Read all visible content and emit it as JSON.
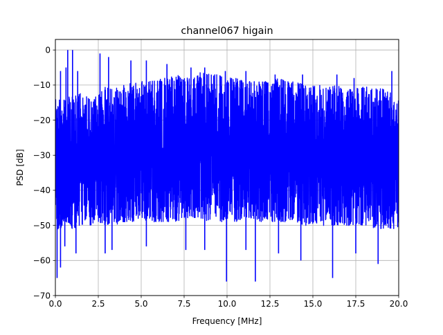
{
  "chart_data": {
    "type": "line",
    "title": "channel067 higain",
    "xlabel": "Frequency [MHz]",
    "ylabel": "PSD [dB]",
    "xlim": [
      0,
      20
    ],
    "ylim": [
      -70,
      3
    ],
    "xticks": [
      0,
      2.5,
      5,
      7.5,
      10,
      12.5,
      15,
      17.5,
      20
    ],
    "xtick_labels": [
      "0.0",
      "2.5",
      "5.0",
      "7.5",
      "10.0",
      "12.5",
      "15.0",
      "17.5",
      "20.0"
    ],
    "yticks": [
      0,
      -10,
      -20,
      -30,
      -40,
      -50,
      -60,
      -70
    ],
    "ytick_labels": [
      "0",
      "−10",
      "−20",
      "−30",
      "−40",
      "−50",
      "−60",
      "−70"
    ],
    "grid": true,
    "line_color": "#0000ff",
    "series": [
      {
        "upper_envelope": {
          "x": [
            0,
            0.5,
            1.0,
            1.5,
            2.0,
            2.5,
            3.0,
            3.5,
            4.0,
            4.5,
            5.0,
            5.5,
            6.0,
            6.5,
            7.0,
            7.5,
            8.0,
            8.5,
            9.0,
            9.5,
            10.0,
            10.5,
            11.0,
            11.5,
            12.0,
            12.5,
            13.0,
            13.5,
            14.0,
            14.5,
            15.0,
            15.5,
            16.0,
            16.5,
            17.0,
            17.5,
            18.0,
            18.5,
            19.0,
            19.5,
            20.0
          ],
          "y": [
            -13,
            -14,
            -13,
            -12,
            -14,
            -13,
            -10,
            -11,
            -10,
            -9,
            -9,
            -9,
            -8,
            -8,
            -7,
            -8,
            -8,
            -6,
            -7,
            -7,
            -8,
            -8,
            -9,
            -9,
            -9,
            -9,
            -8,
            -9,
            -9,
            -10,
            -10,
            -9,
            -10,
            -10,
            -11,
            -11,
            -10,
            -11,
            -11,
            -12,
            -12
          ]
        },
        "lower_envelope": {
          "x": [
            0,
            0.5,
            1.0,
            1.5,
            2.0,
            2.5,
            3.0,
            3.5,
            4.0,
            4.5,
            5.0,
            5.5,
            6.0,
            6.5,
            7.0,
            7.5,
            8.0,
            8.5,
            9.0,
            9.5,
            10.0,
            10.5,
            11.0,
            11.5,
            12.0,
            12.5,
            13.0,
            13.5,
            14.0,
            14.5,
            15.0,
            15.5,
            16.0,
            16.5,
            17.0,
            17.5,
            18.0,
            18.5,
            19.0,
            19.5,
            20.0
          ],
          "y": [
            -52,
            -50,
            -51,
            -50,
            -50,
            -49,
            -50,
            -50,
            -49,
            -49,
            -48,
            -49,
            -49,
            -49,
            -49,
            -48,
            -48,
            -48,
            -49,
            -49,
            -49,
            -49,
            -48,
            -48,
            -49,
            -49,
            -49,
            -49,
            -49,
            -50,
            -50,
            -50,
            -50,
            -50,
            -50,
            -50,
            -50,
            -51,
            -51,
            -51,
            -51
          ]
        },
        "peaks": [
          {
            "x": 0.3,
            "y": -6
          },
          {
            "x": 0.62,
            "y": -5
          },
          {
            "x": 0.72,
            "y": 0
          },
          {
            "x": 1.0,
            "y": 0
          },
          {
            "x": 1.3,
            "y": -6
          },
          {
            "x": 2.6,
            "y": -1
          },
          {
            "x": 3.1,
            "y": -2
          },
          {
            "x": 4.4,
            "y": -3
          },
          {
            "x": 5.3,
            "y": -3
          },
          {
            "x": 6.5,
            "y": -4
          },
          {
            "x": 7.9,
            "y": -5
          },
          {
            "x": 8.7,
            "y": -5
          },
          {
            "x": 9.9,
            "y": -6
          },
          {
            "x": 11.1,
            "y": -6
          },
          {
            "x": 12.8,
            "y": -7
          },
          {
            "x": 14.4,
            "y": -7
          },
          {
            "x": 16.4,
            "y": -7
          },
          {
            "x": 17.4,
            "y": -8
          },
          {
            "x": 19.6,
            "y": -6
          }
        ],
        "dips": [
          {
            "x": 0.1,
            "y": -65
          },
          {
            "x": 0.3,
            "y": -62
          },
          {
            "x": 0.55,
            "y": -56
          },
          {
            "x": 1.2,
            "y": -58
          },
          {
            "x": 2.9,
            "y": -58
          },
          {
            "x": 3.3,
            "y": -57
          },
          {
            "x": 5.3,
            "y": -56
          },
          {
            "x": 7.6,
            "y": -57
          },
          {
            "x": 8.7,
            "y": -57
          },
          {
            "x": 9.97,
            "y": -66
          },
          {
            "x": 11.1,
            "y": -57
          },
          {
            "x": 11.65,
            "y": -66
          },
          {
            "x": 13.0,
            "y": -58
          },
          {
            "x": 14.3,
            "y": -60
          },
          {
            "x": 16.15,
            "y": -65
          },
          {
            "x": 17.5,
            "y": -58
          },
          {
            "x": 18.8,
            "y": -61
          }
        ]
      }
    ]
  }
}
